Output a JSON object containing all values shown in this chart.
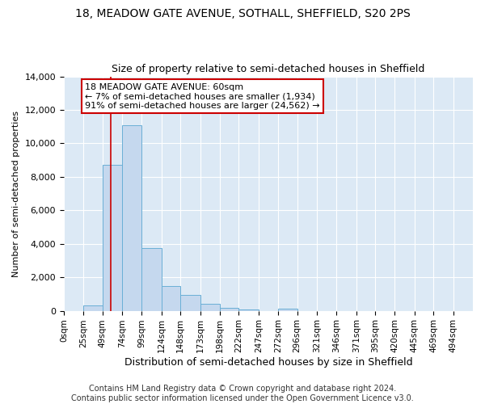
{
  "title": "18, MEADOW GATE AVENUE, SOTHALL, SHEFFIELD, S20 2PS",
  "subtitle": "Size of property relative to semi-detached houses in Sheffield",
  "xlabel": "Distribution of semi-detached houses by size in Sheffield",
  "ylabel": "Number of semi-detached properties",
  "bin_edges": [
    0,
    25,
    49,
    74,
    99,
    124,
    148,
    173,
    198,
    222,
    247,
    272,
    296,
    321,
    346,
    371,
    395,
    420,
    445,
    469,
    494,
    519
  ],
  "bin_labels": [
    "0sqm",
    "25sqm",
    "49sqm",
    "74sqm",
    "99sqm",
    "124sqm",
    "148sqm",
    "173sqm",
    "198sqm",
    "222sqm",
    "247sqm",
    "272sqm",
    "296sqm",
    "321sqm",
    "346sqm",
    "371sqm",
    "395sqm",
    "420sqm",
    "445sqm",
    "469sqm",
    "494sqm"
  ],
  "bar_heights": [
    0,
    300,
    8700,
    11100,
    3750,
    1500,
    950,
    400,
    150,
    60,
    0,
    130,
    0,
    0,
    0,
    0,
    0,
    0,
    0,
    0,
    0
  ],
  "bar_color": "#c5d8ee",
  "bar_edge_color": "#6aafd6",
  "ylim": [
    0,
    14000
  ],
  "yticks": [
    0,
    2000,
    4000,
    6000,
    8000,
    10000,
    12000,
    14000
  ],
  "red_line_x": 60,
  "red_line_color": "#cc0000",
  "annotation_text": "18 MEADOW GATE AVENUE: 60sqm\n← 7% of semi-detached houses are smaller (1,934)\n91% of semi-detached houses are larger (24,562) →",
  "annotation_box_facecolor": "#ffffff",
  "annotation_box_edgecolor": "#cc0000",
  "fig_bg_color": "#ffffff",
  "plot_bg_color": "#dce9f5",
  "footer_text": "Contains HM Land Registry data © Crown copyright and database right 2024.\nContains public sector information licensed under the Open Government Licence v3.0.",
  "title_fontsize": 10,
  "subtitle_fontsize": 9,
  "annotation_fontsize": 8,
  "footer_fontsize": 7,
  "xlabel_fontsize": 9,
  "ylabel_fontsize": 8
}
